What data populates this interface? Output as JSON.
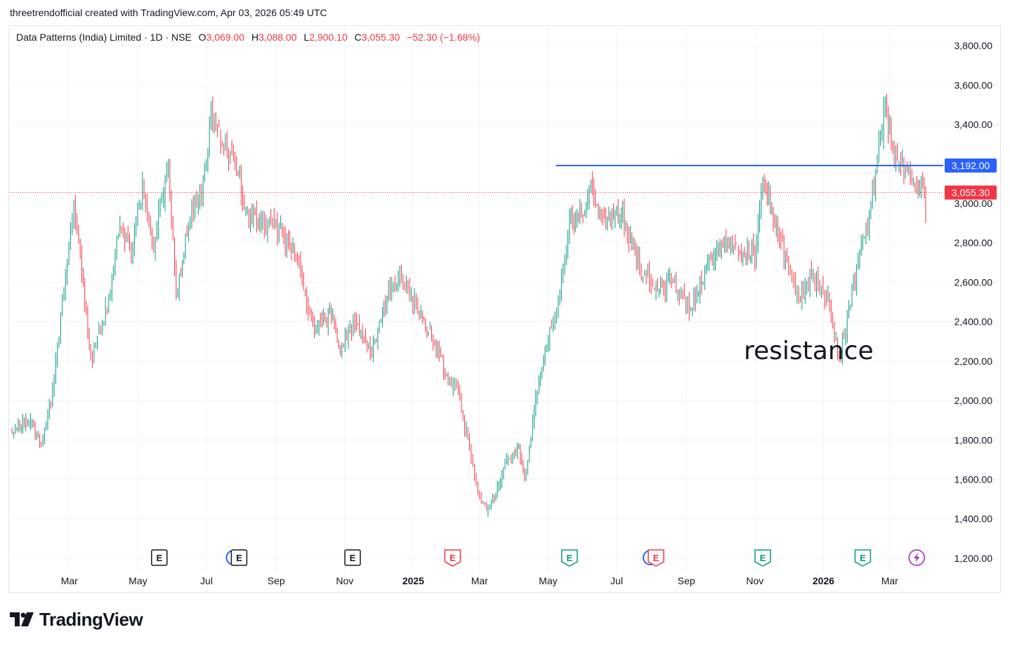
{
  "caption": "threetrendofficial created with TradingView.com, Apr 03, 2026 05:49 UTC",
  "legend": {
    "symbol": "Data Patterns (India) Limited · 1D · NSE",
    "open_label": "O",
    "open": "3,069.00",
    "high_label": "H",
    "high": "3,088.00",
    "low_label": "L",
    "low": "2,900.10",
    "close_label": "C",
    "close": "3,055.30",
    "change": "−52.30 (−1.68%)"
  },
  "annotation": "resistance",
  "brand": "TradingView",
  "colors": {
    "up": "#089981",
    "down": "#f23645",
    "resistance_line": "#2962ff",
    "grid": "#f0f3fa",
    "last_price": "#f23645"
  },
  "chart_data": {
    "type": "candlestick",
    "symbol": "Data Patterns (India) Limited",
    "interval": "1D",
    "exchange": "NSE",
    "y_axis": {
      "ticks": [
        "3,800.00",
        "3,600.00",
        "3,400.00",
        "3,000.00",
        "2,800.00",
        "2,600.00",
        "2,400.00",
        "2,200.00",
        "2,000.00",
        "1,800.00",
        "1,600.00",
        "1,400.00",
        "1,200.00"
      ],
      "range": [
        1150,
        3900
      ]
    },
    "x_axis": {
      "ticks": [
        {
          "label": "Mar",
          "date": "2024-03",
          "bold": false
        },
        {
          "label": "May",
          "date": "2024-05",
          "bold": false
        },
        {
          "label": "Jul",
          "date": "2024-07",
          "bold": false
        },
        {
          "label": "Sep",
          "date": "2024-09",
          "bold": false
        },
        {
          "label": "Nov",
          "date": "2024-11",
          "bold": false
        },
        {
          "label": "2025",
          "date": "2025-01",
          "bold": true
        },
        {
          "label": "Mar",
          "date": "2025-03",
          "bold": false
        },
        {
          "label": "May",
          "date": "2025-05",
          "bold": false
        },
        {
          "label": "Jul",
          "date": "2025-07",
          "bold": false
        },
        {
          "label": "Sep",
          "date": "2025-09",
          "bold": false
        },
        {
          "label": "Nov",
          "date": "2025-11",
          "bold": false
        },
        {
          "label": "2026",
          "date": "2026-01",
          "bold": true
        },
        {
          "label": "Mar",
          "date": "2026-03",
          "bold": false
        }
      ]
    },
    "price_path": [
      [
        "2024-01-10",
        1850
      ],
      [
        "2024-01-25",
        1900
      ],
      [
        "2024-02-05",
        1780
      ],
      [
        "2024-02-15",
        2050
      ],
      [
        "2024-02-28",
        2700
      ],
      [
        "2024-03-05",
        3000
      ],
      [
        "2024-03-12",
        2650
      ],
      [
        "2024-03-20",
        2200
      ],
      [
        "2024-04-05",
        2500
      ],
      [
        "2024-04-15",
        2900
      ],
      [
        "2024-04-25",
        2750
      ],
      [
        "2024-05-05",
        3100
      ],
      [
        "2024-05-15",
        2800
      ],
      [
        "2024-05-28",
        3200
      ],
      [
        "2024-06-04",
        2500
      ],
      [
        "2024-06-15",
        2900
      ],
      [
        "2024-06-28",
        3100
      ],
      [
        "2024-07-05",
        3450
      ],
      [
        "2024-07-15",
        3300
      ],
      [
        "2024-07-25",
        3250
      ],
      [
        "2024-08-05",
        2950
      ],
      [
        "2024-08-20",
        2900
      ],
      [
        "2024-09-05",
        2850
      ],
      [
        "2024-09-20",
        2700
      ],
      [
        "2024-10-05",
        2350
      ],
      [
        "2024-10-20",
        2450
      ],
      [
        "2024-10-28",
        2250
      ],
      [
        "2024-11-10",
        2400
      ],
      [
        "2024-11-25",
        2250
      ],
      [
        "2024-12-10",
        2550
      ],
      [
        "2024-12-20",
        2650
      ],
      [
        "2025-01-05",
        2450
      ],
      [
        "2025-01-20",
        2300
      ],
      [
        "2025-02-01",
        2100
      ],
      [
        "2025-02-10",
        2050
      ],
      [
        "2025-02-20",
        1750
      ],
      [
        "2025-03-01",
        1500
      ],
      [
        "2025-03-10",
        1450
      ],
      [
        "2025-03-25",
        1700
      ],
      [
        "2025-04-05",
        1750
      ],
      [
        "2025-04-10",
        1600
      ],
      [
        "2025-04-20",
        2000
      ],
      [
        "2025-05-01",
        2300
      ],
      [
        "2025-05-10",
        2500
      ],
      [
        "2025-05-20",
        2900
      ],
      [
        "2025-06-01",
        2950
      ],
      [
        "2025-06-08",
        3080
      ],
      [
        "2025-06-20",
        2900
      ],
      [
        "2025-07-05",
        2950
      ],
      [
        "2025-07-20",
        2700
      ],
      [
        "2025-08-05",
        2550
      ],
      [
        "2025-08-20",
        2600
      ],
      [
        "2025-09-05",
        2450
      ],
      [
        "2025-09-20",
        2700
      ],
      [
        "2025-10-05",
        2800
      ],
      [
        "2025-10-20",
        2750
      ],
      [
        "2025-11-01",
        2750
      ],
      [
        "2025-11-08",
        3100
      ],
      [
        "2025-11-20",
        2900
      ],
      [
        "2025-12-01",
        2650
      ],
      [
        "2025-12-10",
        2500
      ],
      [
        "2025-12-20",
        2650
      ],
      [
        "2026-01-05",
        2500
      ],
      [
        "2026-01-15",
        2200
      ],
      [
        "2026-01-25",
        2500
      ],
      [
        "2026-02-05",
        2800
      ],
      [
        "2026-02-15",
        3100
      ],
      [
        "2026-02-25",
        3500
      ],
      [
        "2026-03-05",
        3250
      ],
      [
        "2026-03-15",
        3150
      ],
      [
        "2026-03-25",
        3100
      ],
      [
        "2026-04-02",
        3055
      ]
    ],
    "resistance": {
      "price": 3192,
      "label": "3,192.00",
      "from_date": "2025-05-08",
      "to_date": "2026-04-02"
    },
    "last_price": {
      "price": 3055.3,
      "label": "3,055.30"
    },
    "earnings_markers": [
      {
        "date": "2024-05-20",
        "kind": "E",
        "color": "neutral"
      },
      {
        "date": "2024-07-30",
        "kind": "E",
        "color": "neutral",
        "dividend": true
      },
      {
        "date": "2024-11-08",
        "kind": "E",
        "color": "neutral"
      },
      {
        "date": "2025-02-05",
        "kind": "E",
        "color": "red"
      },
      {
        "date": "2025-05-20",
        "kind": "E",
        "color": "green"
      },
      {
        "date": "2025-08-05",
        "kind": "E",
        "color": "red",
        "dividend": true
      },
      {
        "date": "2025-11-08",
        "kind": "E",
        "color": "green"
      },
      {
        "date": "2026-02-05",
        "kind": "E",
        "color": "green"
      },
      {
        "date": "2026-03-25",
        "kind": "flash",
        "color": "purple"
      }
    ]
  }
}
